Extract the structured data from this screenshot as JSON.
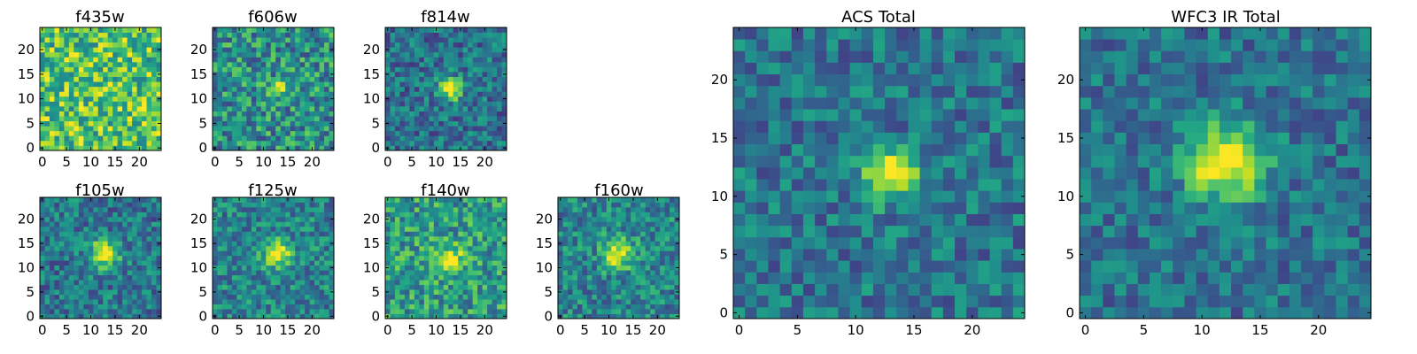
{
  "chart_data": [
    {
      "type": "heatmap",
      "title": "f435w",
      "grid_size": 25,
      "colormap": "viridis",
      "noise_level": 0.3,
      "background_level": 0.72,
      "source": {
        "x": 12,
        "y": 12,
        "amplitude": 0.05,
        "sigma": 2.0
      },
      "seed": 11,
      "xticks": [
        0,
        5,
        10,
        15,
        20
      ],
      "yticks": [
        0,
        5,
        10,
        15,
        20
      ],
      "xlim": [
        0,
        24
      ],
      "ylim": [
        0,
        24
      ]
    },
    {
      "type": "heatmap",
      "title": "f606w",
      "grid_size": 25,
      "colormap": "viridis",
      "noise_level": 0.28,
      "background_level": 0.5,
      "source": {
        "x": 13,
        "y": 12,
        "amplitude": 0.55,
        "sigma": 1.2
      },
      "seed": 23,
      "xticks": [
        0,
        5,
        10,
        15,
        20
      ],
      "yticks": [
        0,
        5,
        10,
        15,
        20
      ],
      "xlim": [
        0,
        24
      ],
      "ylim": [
        0,
        24
      ]
    },
    {
      "type": "heatmap",
      "title": "f814w",
      "grid_size": 25,
      "colormap": "viridis",
      "noise_level": 0.22,
      "background_level": 0.38,
      "source": {
        "x": 13,
        "y": 12,
        "amplitude": 0.65,
        "sigma": 1.6
      },
      "seed": 37,
      "xticks": [
        0,
        5,
        10,
        15,
        20
      ],
      "yticks": [
        0,
        5,
        10,
        15,
        20
      ],
      "xlim": [
        0,
        24
      ],
      "ylim": [
        0,
        24
      ]
    },
    {
      "type": "heatmap",
      "title": "f105w",
      "grid_size": 25,
      "colormap": "viridis",
      "noise_level": 0.22,
      "background_level": 0.4,
      "source": {
        "x": 13,
        "y": 13,
        "amplitude": 0.65,
        "sigma": 2.0
      },
      "seed": 41,
      "xticks": [
        0,
        5,
        10,
        15,
        20
      ],
      "yticks": [
        0,
        5,
        10,
        15,
        20
      ],
      "xlim": [
        0,
        24
      ],
      "ylim": [
        0,
        24
      ]
    },
    {
      "type": "heatmap",
      "title": "f125w",
      "grid_size": 25,
      "colormap": "viridis",
      "noise_level": 0.22,
      "background_level": 0.45,
      "source": {
        "x": 13,
        "y": 13,
        "amplitude": 0.55,
        "sigma": 2.0
      },
      "seed": 53,
      "xticks": [
        0,
        5,
        10,
        15,
        20
      ],
      "yticks": [
        0,
        5,
        10,
        15,
        20
      ],
      "xlim": [
        0,
        24
      ],
      "ylim": [
        0,
        24
      ]
    },
    {
      "type": "heatmap",
      "title": "f140w",
      "grid_size": 25,
      "colormap": "viridis",
      "noise_level": 0.25,
      "background_level": 0.55,
      "source": {
        "x": 13,
        "y": 12,
        "amplitude": 0.4,
        "sigma": 2.0
      },
      "seed": 67,
      "xticks": [
        0,
        5,
        10,
        15,
        20
      ],
      "yticks": [
        0,
        5,
        10,
        15,
        20
      ],
      "xlim": [
        0,
        24
      ],
      "ylim": [
        0,
        24
      ]
    },
    {
      "type": "heatmap",
      "title": "f160w",
      "grid_size": 25,
      "colormap": "viridis",
      "noise_level": 0.22,
      "background_level": 0.45,
      "source": {
        "x": 12,
        "y": 13,
        "amplitude": 0.55,
        "sigma": 2.2
      },
      "seed": 79,
      "xticks": [
        0,
        5,
        10,
        15,
        20
      ],
      "yticks": [
        0,
        5,
        10,
        15,
        20
      ],
      "xlim": [
        0,
        24
      ],
      "ylim": [
        0,
        24
      ]
    },
    {
      "type": "heatmap",
      "title": "ACS Total",
      "grid_size": 25,
      "colormap": "viridis",
      "noise_level": 0.2,
      "background_level": 0.4,
      "source": {
        "x": 13,
        "y": 12,
        "amplitude": 0.7,
        "sigma": 1.5
      },
      "seed": 89,
      "xticks": [
        0,
        5,
        10,
        15,
        20
      ],
      "yticks": [
        0,
        5,
        10,
        15,
        20
      ],
      "xlim": [
        0,
        24
      ],
      "ylim": [
        0,
        24
      ]
    },
    {
      "type": "heatmap",
      "title": "WFC3 IR Total",
      "grid_size": 25,
      "colormap": "viridis",
      "noise_level": 0.18,
      "background_level": 0.38,
      "source": {
        "x": 12,
        "y": 13,
        "amplitude": 0.7,
        "sigma": 2.3
      },
      "seed": 97,
      "xticks": [
        0,
        5,
        10,
        15,
        20
      ],
      "yticks": [
        0,
        5,
        10,
        15,
        20
      ],
      "xlim": [
        0,
        24
      ],
      "ylim": [
        0,
        24
      ]
    }
  ]
}
